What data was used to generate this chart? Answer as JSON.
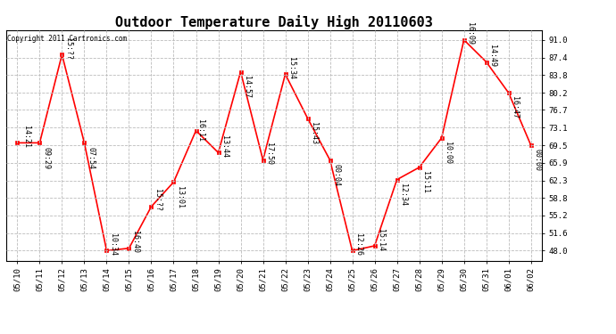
{
  "title": "Outdoor Temperature Daily High 20110603",
  "copyright": "Copyright 2011 Cartronics.com",
  "x_labels": [
    "05/10",
    "05/11",
    "05/12",
    "05/13",
    "05/14",
    "05/15",
    "05/16",
    "05/17",
    "05/18",
    "05/19",
    "05/20",
    "05/21",
    "05/22",
    "05/23",
    "05/24",
    "05/25",
    "05/26",
    "05/27",
    "05/28",
    "05/29",
    "05/30",
    "05/31",
    "06/01",
    "06/02"
  ],
  "y_corrected": [
    70.0,
    70.0,
    88.0,
    70.0,
    48.0,
    48.5,
    57.0,
    62.0,
    72.5,
    68.0,
    84.5,
    66.5,
    84.0,
    75.0,
    66.5,
    48.0,
    49.0,
    62.5,
    65.0,
    71.0,
    91.0,
    86.5,
    80.2,
    69.5
  ],
  "y_ticks": [
    48.0,
    51.6,
    55.2,
    58.8,
    62.3,
    65.9,
    69.5,
    73.1,
    76.7,
    80.2,
    83.8,
    87.4,
    91.0
  ],
  "line_color": "#ff0000",
  "marker_color": "#ff0000",
  "background_color": "#ffffff",
  "grid_color": "#bbbbbb",
  "title_fontsize": 11,
  "annotation_fontsize": 6.0,
  "tick_fontsize": 6.5,
  "ytick_fontsize": 6.5,
  "copyright_fontsize": 5.5,
  "annotation_offsets": [
    [
      0,
      4,
      5,
      "14:21"
    ],
    [
      1,
      2,
      -12,
      "09:29"
    ],
    [
      2,
      2,
      5,
      "15:??"
    ],
    [
      3,
      2,
      -12,
      "07:54"
    ],
    [
      4,
      2,
      5,
      "10:34"
    ],
    [
      5,
      2,
      5,
      "16:40"
    ],
    [
      6,
      2,
      5,
      "15:??"
    ],
    [
      7,
      2,
      -12,
      "13:01"
    ],
    [
      8,
      0,
      0,
      "16:11"
    ],
    [
      9,
      2,
      5,
      "13:44"
    ],
    [
      10,
      2,
      -12,
      "14:57"
    ],
    [
      11,
      2,
      5,
      "17:50"
    ],
    [
      12,
      2,
      5,
      "15:34"
    ],
    [
      13,
      2,
      -12,
      "15:43"
    ],
    [
      14,
      2,
      -12,
      "00:04"
    ],
    [
      15,
      2,
      5,
      "12:26"
    ],
    [
      16,
      2,
      5,
      "15:14"
    ],
    [
      17,
      2,
      -12,
      "12:34"
    ],
    [
      18,
      2,
      -12,
      "15:11"
    ],
    [
      19,
      2,
      -12,
      "10:00"
    ],
    [
      20,
      2,
      5,
      "16:09"
    ],
    [
      21,
      2,
      5,
      "14:49"
    ],
    [
      22,
      2,
      -12,
      "16:47"
    ],
    [
      23,
      2,
      -12,
      "00:00"
    ]
  ]
}
